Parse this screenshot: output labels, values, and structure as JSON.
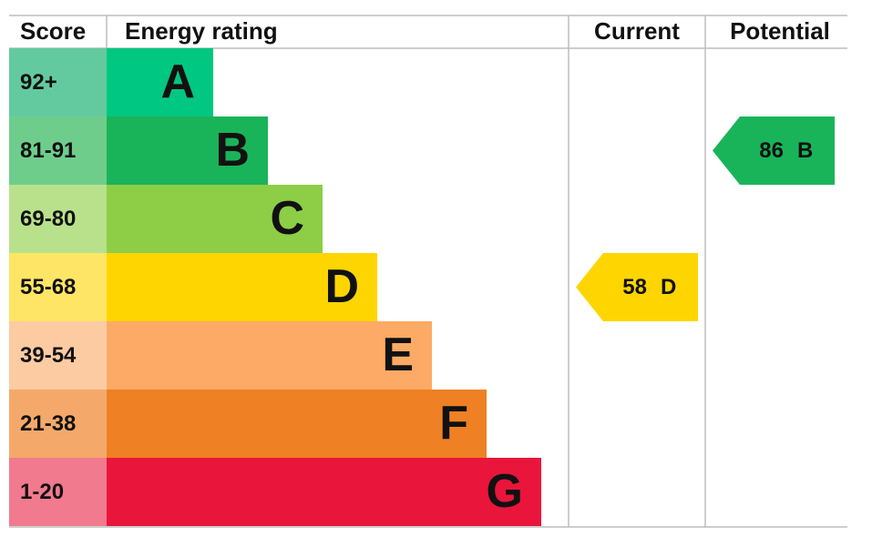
{
  "header": {
    "score": "Score",
    "rating": "Energy rating",
    "current": "Current",
    "potential": "Potential"
  },
  "bands": [
    {
      "score": "92+",
      "letter": "A",
      "color": "#00c781",
      "score_color": "#63caa0"
    },
    {
      "score": "81-91",
      "letter": "B",
      "color": "#19b459",
      "score_color": "#6fcd8c"
    },
    {
      "score": "69-80",
      "letter": "C",
      "color": "#8dce46",
      "score_color": "#b9e18c"
    },
    {
      "score": "55-68",
      "letter": "D",
      "color": "#ffd500",
      "score_color": "#ffe566"
    },
    {
      "score": "39-54",
      "letter": "E",
      "color": "#fcaa65",
      "score_color": "#fdcba2"
    },
    {
      "score": "21-38",
      "letter": "F",
      "color": "#ef8023",
      "score_color": "#f4a96b"
    },
    {
      "score": "1-20",
      "letter": "G",
      "color": "#e9153b",
      "score_color": "#f17a8e"
    }
  ],
  "current": {
    "score": 58,
    "letter": "D",
    "color": "#ffd500"
  },
  "potential": {
    "score": 86,
    "letter": "B",
    "color": "#19b459"
  }
}
